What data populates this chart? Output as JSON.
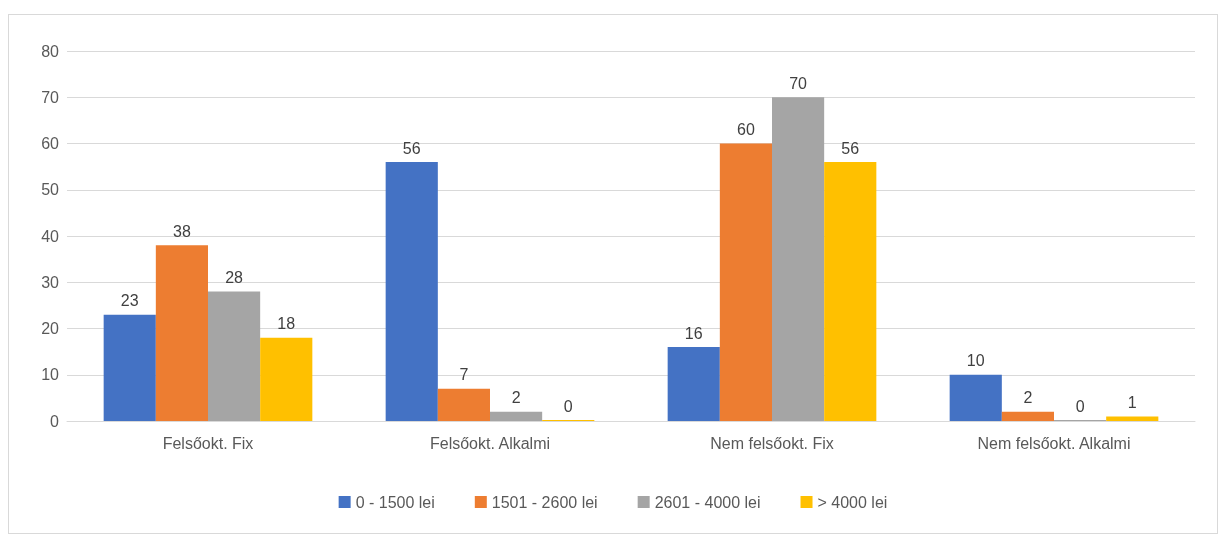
{
  "chart_data": {
    "type": "bar",
    "categories": [
      "Felsőokt. Fix",
      "Felsőokt. Alkalmi",
      "Nem felsőokt. Fix",
      "Nem felsőokt. Alkalmi"
    ],
    "series": [
      {
        "name": "0 - 1500 lei",
        "color": "#4472c4",
        "values": [
          23,
          56,
          16,
          10
        ]
      },
      {
        "name": "1501 - 2600 lei",
        "color": "#ed7d31",
        "values": [
          38,
          7,
          60,
          2
        ]
      },
      {
        "name": "2601 - 4000 lei",
        "color": "#a5a5a5",
        "values": [
          28,
          2,
          70,
          0
        ]
      },
      {
        "name": "> 4000 lei",
        "color": "#ffc000",
        "values": [
          18,
          0,
          56,
          1
        ]
      }
    ],
    "ylim": [
      0,
      80
    ],
    "yticks": [
      0,
      10,
      20,
      30,
      40,
      50,
      60,
      70,
      80
    ],
    "grid": "y",
    "legend": "bottom",
    "data_labels": true
  }
}
